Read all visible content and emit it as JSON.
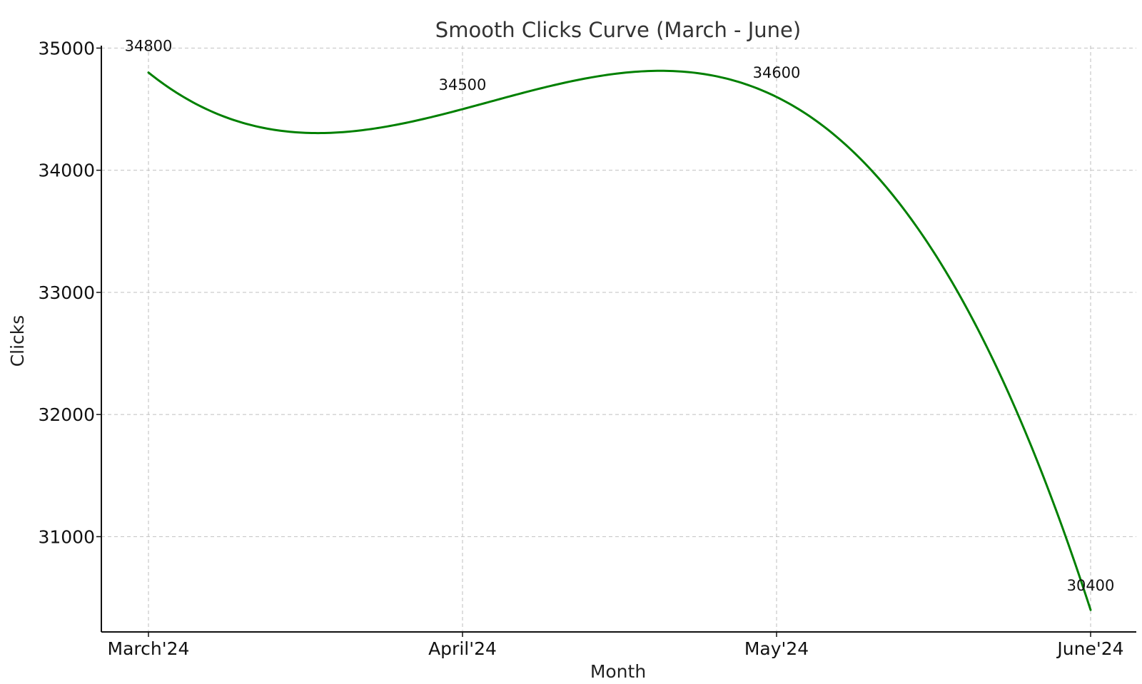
{
  "chart_data": {
    "type": "line",
    "title": "Smooth Clicks Curve (March - June)",
    "xlabel": "Month",
    "ylabel": "Clicks",
    "categories": [
      "March'24",
      "April'24",
      "May'24",
      "June'24"
    ],
    "series": [
      {
        "values": [
          34800,
          34500,
          34600,
          30400
        ],
        "color": "#008000"
      }
    ],
    "data_labels": [
      "34800",
      "34500",
      "34600",
      "30400"
    ],
    "yticks": [
      31000,
      32000,
      33000,
      34000,
      35000
    ],
    "ylim": [
      30220,
      35020
    ],
    "smooth": true,
    "grid": true
  }
}
